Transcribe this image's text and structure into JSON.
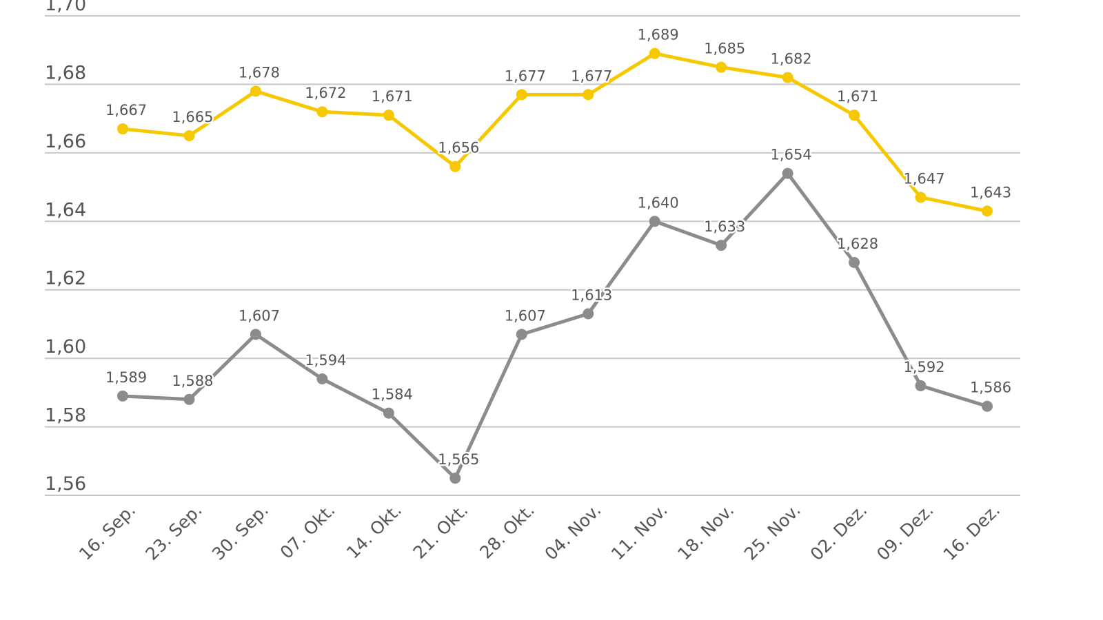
{
  "chart_data": {
    "type": "line",
    "title": "",
    "xlabel": "",
    "ylabel": "",
    "ylim": [
      1.56,
      1.7
    ],
    "yticks": [
      "1,56",
      "1,58",
      "1,60",
      "1,62",
      "1,64",
      "1,66",
      "1,68",
      "1,70"
    ],
    "ytick_values": [
      1.56,
      1.58,
      1.6,
      1.62,
      1.64,
      1.66,
      1.68,
      1.7
    ],
    "grid": true,
    "legend": "none",
    "categories": [
      "16. Sep.",
      "23. Sep.",
      "30. Sep.",
      "07. Okt.",
      "14. Okt.",
      "21. Okt.",
      "28. Okt.",
      "04. Nov.",
      "11. Nov.",
      "18. Nov.",
      "25. Nov.",
      "02. Dez.",
      "09. Dez.",
      "16. Dez."
    ],
    "series": [
      {
        "color": "#F5C800",
        "values": [
          1.667,
          1.665,
          1.678,
          1.672,
          1.671,
          1.656,
          1.677,
          1.677,
          1.689,
          1.685,
          1.682,
          1.671,
          1.647,
          1.643
        ],
        "labels": [
          "1,667",
          "1,665",
          "1,678",
          "1,672",
          "1,671",
          "1,656",
          "1,677",
          "1,677",
          "1,689",
          "1,685",
          "1,682",
          "1,671",
          "1,647",
          "1,643"
        ]
      },
      {
        "color": "#8C8C8C",
        "values": [
          1.589,
          1.588,
          1.607,
          1.594,
          1.584,
          1.565,
          1.607,
          1.613,
          1.64,
          1.633,
          1.654,
          1.628,
          1.592,
          1.586
        ],
        "labels": [
          "1,589",
          "1,588",
          "1,607",
          "1,594",
          "1,584",
          "1,565",
          "1,607",
          "1,613",
          "1,640",
          "1,633",
          "1,654",
          "1,628",
          "1,592",
          "1,586"
        ]
      }
    ]
  }
}
